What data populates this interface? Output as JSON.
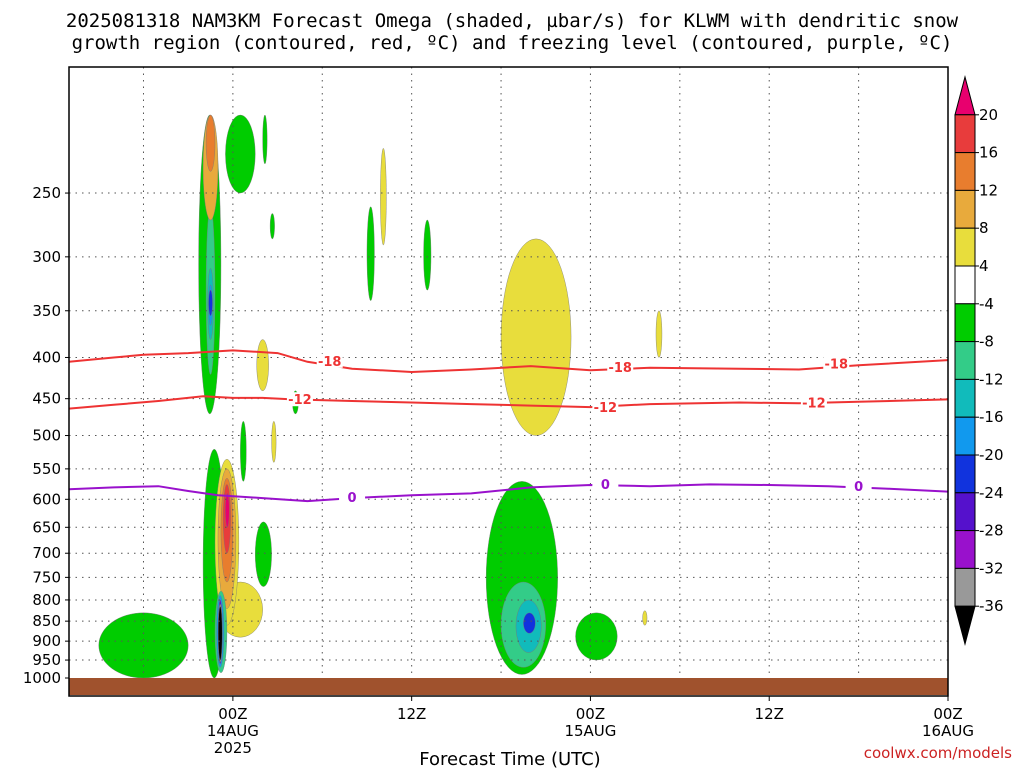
{
  "title_line1": "2025081318 NAM3KM Forecast Omega (shaded, µbar/s) for KLWM with dendritic snow",
  "title_line2": "growth region (contoured, red, ºC) and freezing level (contoured, purple, ºC)",
  "xlabel": "Forecast Time (UTC)",
  "watermark": "coolwx.com/models",
  "colors": {
    "isotherm_dgz": "#ee3333",
    "freezing_level": "#9911cc",
    "ground": "#a0522d",
    "grid": "#555555"
  },
  "chart_data": {
    "type": "heatmap",
    "x_unit": "forecast hour from 2025-08-13 18Z",
    "xlim": [
      -5,
      54
    ],
    "y_unit": "mb",
    "y_scale": "log (pressure)",
    "ylim": [
      1000,
      200
    ],
    "y_ticks": [
      "250",
      "300",
      "350",
      "400",
      "450",
      "500",
      "550",
      "600",
      "650",
      "700",
      "750",
      "800",
      "850",
      "900",
      "950",
      "1000"
    ],
    "y_tick_values": [
      250,
      300,
      350,
      400,
      450,
      500,
      550,
      600,
      650,
      700,
      750,
      800,
      850,
      900,
      950,
      1000
    ],
    "x_ticks": [
      {
        "hour": 6,
        "lines": [
          "00Z",
          "14AUG",
          "2025"
        ]
      },
      {
        "hour": 18,
        "lines": [
          "12Z"
        ]
      },
      {
        "hour": 30,
        "lines": [
          "00Z",
          "15AUG"
        ]
      },
      {
        "hour": 42,
        "lines": [
          "12Z"
        ]
      },
      {
        "hour": 54,
        "lines": [
          "00Z",
          "16AUG"
        ]
      }
    ],
    "grid": true,
    "colorbar": {
      "levels": [
        "20",
        "16",
        "12",
        "8",
        "4",
        "-4",
        "-8",
        "-12",
        "-16",
        "-20",
        "-24",
        "-28",
        "-32",
        "-36"
      ],
      "colors": [
        "#e8006e",
        "#e83c3c",
        "#e87d2e",
        "#e8aa3c",
        "#e8dd3c",
        "#ffffff",
        "#00cc00",
        "#33cc88",
        "#11bbbb",
        "#1199ee",
        "#1133dd",
        "#5511cc",
        "#9911cc",
        "#999999",
        "#000000"
      ]
    },
    "contours": [
      {
        "label": "-18",
        "color": "#ee3333",
        "points": [
          [
            -5,
            405
          ],
          [
            -2,
            400
          ],
          [
            0,
            397
          ],
          [
            3,
            395
          ],
          [
            6,
            392
          ],
          [
            9,
            395
          ],
          [
            11,
            405
          ],
          [
            14,
            413
          ],
          [
            18,
            417
          ],
          [
            22,
            414
          ],
          [
            26,
            410
          ],
          [
            30,
            415
          ],
          [
            34,
            412
          ],
          [
            40,
            413
          ],
          [
            44,
            414
          ],
          [
            48,
            409
          ],
          [
            54,
            403
          ]
        ]
      },
      {
        "label": "-12",
        "color": "#ee3333",
        "points": [
          [
            -5,
            463
          ],
          [
            -2,
            458
          ],
          [
            1,
            453
          ],
          [
            4,
            447
          ],
          [
            6,
            449
          ],
          [
            8,
            449
          ],
          [
            10,
            451
          ],
          [
            14,
            453
          ],
          [
            18,
            455
          ],
          [
            22,
            457
          ],
          [
            26,
            459
          ],
          [
            30,
            461
          ],
          [
            34,
            457
          ],
          [
            40,
            455
          ],
          [
            44,
            456
          ],
          [
            48,
            454
          ],
          [
            54,
            451
          ]
        ]
      },
      {
        "label": "0",
        "color": "#9911cc",
        "points": [
          [
            -5,
            583
          ],
          [
            -2,
            580
          ],
          [
            1,
            578
          ],
          [
            3,
            586
          ],
          [
            5,
            593
          ],
          [
            8,
            598
          ],
          [
            11,
            603
          ],
          [
            14,
            598
          ],
          [
            18,
            593
          ],
          [
            22,
            590
          ],
          [
            26,
            580
          ],
          [
            30,
            576
          ],
          [
            34,
            578
          ],
          [
            38,
            575
          ],
          [
            42,
            576
          ],
          [
            46,
            578
          ],
          [
            50,
            582
          ],
          [
            54,
            587
          ]
        ]
      }
    ],
    "omega_areas": [
      {
        "level": "-4",
        "t_range": [
          3.7,
          5.2
        ],
        "p_range": [
          200,
          470
        ]
      },
      {
        "level": "-8",
        "t_range": [
          4.2,
          4.8
        ],
        "p_range": [
          260,
          420
        ]
      },
      {
        "level": "-12",
        "t_range": [
          4.3,
          4.7
        ],
        "p_range": [
          310,
          380
        ]
      },
      {
        "level": "-16",
        "t_range": [
          4.4,
          4.6
        ],
        "p_range": [
          325,
          365
        ]
      },
      {
        "level": "-20",
        "t_range": [
          4.45,
          4.55
        ],
        "p_range": [
          330,
          355
        ]
      },
      {
        "level": "8",
        "t_range": [
          4.0,
          5.0
        ],
        "p_range": [
          200,
          270
        ]
      },
      {
        "level": "12",
        "t_range": [
          4.2,
          4.8
        ],
        "p_range": [
          200,
          235
        ]
      },
      {
        "level": "-4",
        "t_range": [
          5.5,
          7.5
        ],
        "p_range": [
          200,
          250
        ]
      },
      {
        "level": "-4",
        "t_range": [
          8.0,
          8.3
        ],
        "p_range": [
          200,
          230
        ]
      },
      {
        "level": "-4",
        "t_range": [
          8.5,
          8.8
        ],
        "p_range": [
          265,
          285
        ]
      },
      {
        "level": "4",
        "t_range": [
          7.6,
          8.4
        ],
        "p_range": [
          380,
          440
        ]
      },
      {
        "level": "-4",
        "t_range": [
          6.5,
          6.9
        ],
        "p_range": [
          480,
          570
        ]
      },
      {
        "level": "4",
        "t_range": [
          5.0,
          8.0
        ],
        "p_range": [
          760,
          890
        ]
      },
      {
        "level": "-4",
        "t_range": [
          4.0,
          5.5
        ],
        "p_range": [
          520,
          1000
        ]
      },
      {
        "level": "4",
        "t_range": [
          4.8,
          6.4
        ],
        "p_range": [
          535,
          860
        ]
      },
      {
        "level": "8",
        "t_range": [
          5.0,
          6.2
        ],
        "p_range": [
          550,
          820
        ]
      },
      {
        "level": "12",
        "t_range": [
          5.2,
          6.0
        ],
        "p_range": [
          565,
          760
        ]
      },
      {
        "level": "16",
        "t_range": [
          5.35,
          5.85
        ],
        "p_range": [
          575,
          700
        ]
      },
      {
        "level": "20",
        "t_range": [
          5.5,
          5.75
        ],
        "p_range": [
          590,
          650
        ]
      },
      {
        "level": "-8",
        "t_range": [
          4.8,
          5.6
        ],
        "p_range": [
          780,
          985
        ]
      },
      {
        "level": "-16",
        "t_range": [
          4.9,
          5.4
        ],
        "p_range": [
          790,
          970
        ]
      },
      {
        "level": "-24",
        "t_range": [
          5.0,
          5.3
        ],
        "p_range": [
          800,
          960
        ]
      },
      {
        "level": "-32",
        "t_range": [
          5.05,
          5.25
        ],
        "p_range": [
          810,
          955
        ]
      },
      {
        "level": "-36",
        "t_range": [
          5.1,
          5.2
        ],
        "p_range": [
          815,
          950
        ]
      },
      {
        "level": "-4",
        "t_range": [
          -3.0,
          3.0
        ],
        "p_range": [
          830,
          1000
        ]
      },
      {
        "level": "-4",
        "t_range": [
          7.5,
          8.6
        ],
        "p_range": [
          640,
          770
        ]
      },
      {
        "level": "4",
        "t_range": [
          8.6,
          8.9
        ],
        "p_range": [
          480,
          540
        ]
      },
      {
        "level": "-4",
        "t_range": [
          10.0,
          10.4
        ],
        "p_range": [
          440,
          470
        ]
      },
      {
        "level": "-4",
        "t_range": [
          15.0,
          15.5
        ],
        "p_range": [
          260,
          340
        ]
      },
      {
        "level": "4",
        "t_range": [
          15.9,
          16.3
        ],
        "p_range": [
          220,
          290
        ]
      },
      {
        "level": "-4",
        "t_range": [
          18.8,
          19.3
        ],
        "p_range": [
          270,
          330
        ]
      },
      {
        "level": "4",
        "t_range": [
          24.7,
          25.3
        ],
        "p_range": [
          650,
          730
        ]
      },
      {
        "level": "4",
        "t_range": [
          24.0,
          28.7
        ],
        "p_range": [
          285,
          500
        ]
      },
      {
        "level": "-4",
        "t_range": [
          23.0,
          27.8
        ],
        "p_range": [
          570,
          990
        ]
      },
      {
        "level": "-8",
        "t_range": [
          24.0,
          27.0
        ],
        "p_range": [
          760,
          970
        ]
      },
      {
        "level": "-12",
        "t_range": [
          25.0,
          26.7
        ],
        "p_range": [
          800,
          930
        ]
      },
      {
        "level": "-20",
        "t_range": [
          25.5,
          26.3
        ],
        "p_range": [
          830,
          880
        ]
      },
      {
        "level": "-4",
        "t_range": [
          29.0,
          31.8
        ],
        "p_range": [
          830,
          950
        ]
      },
      {
        "level": "4",
        "t_range": [
          33.5,
          33.8
        ],
        "p_range": [
          825,
          860
        ]
      },
      {
        "level": "4",
        "t_range": [
          34.4,
          34.8
        ],
        "p_range": [
          350,
          400
        ]
      }
    ]
  }
}
